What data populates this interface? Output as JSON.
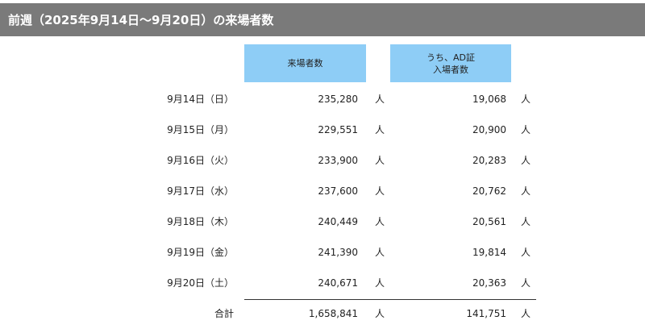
{
  "title": "前週（2025年9月14日～9月20日）の来場者数",
  "headers": {
    "visitors": "来場者数",
    "ad_line1": "うち、AD証",
    "ad_line2": "入場者数"
  },
  "unit": "人",
  "rows": [
    {
      "date": "9月14日（日）",
      "visitors": "235,280",
      "ad": "19,068"
    },
    {
      "date": "9月15日（月）",
      "visitors": "229,551",
      "ad": "20,900"
    },
    {
      "date": "9月16日（火）",
      "visitors": "233,900",
      "ad": "20,283"
    },
    {
      "date": "9月17日（水）",
      "visitors": "237,600",
      "ad": "20,762"
    },
    {
      "date": "9月18日（木）",
      "visitors": "240,449",
      "ad": "20,561"
    },
    {
      "date": "9月19日（金）",
      "visitors": "241,390",
      "ad": "19,814"
    },
    {
      "date": "9月20日（土）",
      "visitors": "240,671",
      "ad": "20,363"
    }
  ],
  "total": {
    "label": "合計",
    "visitors": "1,658,841",
    "ad": "141,751"
  },
  "colors": {
    "title_bg": "#7a7a7a",
    "header_bg": "#8ecdf6"
  }
}
